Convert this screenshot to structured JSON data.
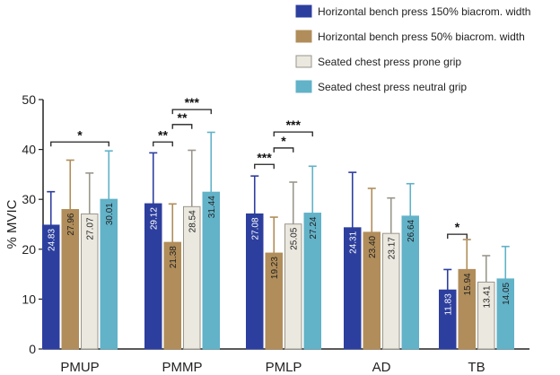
{
  "chart_data": {
    "type": "bar",
    "ylabel": "% MVIC",
    "ylim": [
      0,
      50
    ],
    "yticks": [
      0,
      10,
      20,
      30,
      40,
      50
    ],
    "categories": [
      "PMUP",
      "PMMP",
      "PMLP",
      "AD",
      "TB"
    ],
    "series": [
      {
        "name": "Horizontal bench press 150% biacrom. width",
        "color": "#2d3f9e",
        "text_color": "#ffffff",
        "values": [
          24.83,
          29.12,
          27.08,
          24.31,
          11.83
        ],
        "errors": [
          6.7,
          10.2,
          7.6,
          11.1,
          4.1
        ],
        "labels": [
          "24.83",
          "29.12",
          "27.08",
          "24.31",
          "11.83"
        ]
      },
      {
        "name": "Horizontal bench press 50% biacrom. width",
        "color": "#b08d5a",
        "text_color": "#222222",
        "values": [
          27.96,
          21.38,
          19.23,
          23.4,
          15.94
        ],
        "errors": [
          9.9,
          7.7,
          7.2,
          8.8,
          6.0
        ],
        "labels": [
          "27.96",
          "21.38",
          "19.23",
          "23.40",
          "15.94"
        ]
      },
      {
        "name": "Seated chest press prone grip",
        "color": "#ebe8df",
        "text_color": "#222222",
        "values": [
          27.07,
          28.54,
          25.05,
          23.17,
          13.41
        ],
        "errors": [
          8.2,
          11.3,
          8.4,
          7.1,
          5.3
        ],
        "labels": [
          "27.07",
          "28.54",
          "25.05",
          "23.17",
          "13.41"
        ]
      },
      {
        "name": "Seated chest press neutral grip",
        "color": "#62b2c8",
        "text_color": "#222222",
        "values": [
          30.01,
          31.44,
          27.24,
          26.64,
          14.05
        ],
        "errors": [
          9.7,
          12.0,
          9.4,
          6.5,
          6.5
        ],
        "labels": [
          "30.01",
          "31.44",
          "27.24",
          "26.64",
          "14.05"
        ]
      }
    ],
    "significance": [
      {
        "category": 0,
        "from": 0,
        "to": 3,
        "y": 41.5,
        "label": "*"
      },
      {
        "category": 1,
        "from": 0,
        "to": 1,
        "y": 41.5,
        "label": "**"
      },
      {
        "category": 1,
        "from": 1,
        "to": 2,
        "y": 45.0,
        "label": "**"
      },
      {
        "category": 1,
        "from": 1,
        "to": 3,
        "y": 48.0,
        "label": "***"
      },
      {
        "category": 2,
        "from": 0,
        "to": 1,
        "y": 37.0,
        "label": "***"
      },
      {
        "category": 2,
        "from": 1,
        "to": 2,
        "y": 40.3,
        "label": "*"
      },
      {
        "category": 2,
        "from": 1,
        "to": 3,
        "y": 43.5,
        "label": "***"
      },
      {
        "category": 4,
        "from": 0,
        "to": 1,
        "y": 23.0,
        "label": "*"
      }
    ]
  }
}
